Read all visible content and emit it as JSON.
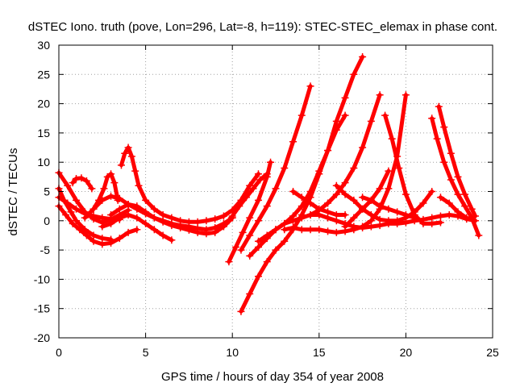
{
  "chart_data": {
    "type": "scatter",
    "title": "dSTEC Iono. truth (pove, Lon=296, Lat=-8, h=119): STEC-STEC_elemax in phase cont.",
    "xlabel": "GPS time / hours of day 354 of year 2008",
    "ylabel": "dSTEC  / TECUs",
    "xlim": [
      0,
      25
    ],
    "ylim": [
      -20,
      30
    ],
    "xticks": [
      0,
      5,
      10,
      15,
      20,
      25
    ],
    "yticks": [
      -20,
      -15,
      -10,
      -5,
      0,
      5,
      10,
      15,
      20,
      25,
      30
    ],
    "grid": true,
    "marker": "plus",
    "color": "#ff0000",
    "series": [
      {
        "x": [
          0.0,
          0.5,
          1.0,
          1.5,
          2.0,
          2.5,
          3.0,
          3.5,
          4.0
        ],
        "y": [
          8.2,
          6.0,
          3.5,
          1.5,
          0.3,
          -0.3,
          0.2,
          1.0,
          1.8
        ]
      },
      {
        "x": [
          0.0,
          0.3,
          0.7,
          1.0,
          1.5,
          2.0,
          2.5,
          3.0
        ],
        "y": [
          5.5,
          3.5,
          1.5,
          0.0,
          -1.5,
          -2.5,
          -3.0,
          -3.2
        ]
      },
      {
        "x": [
          0.0,
          0.4,
          0.8,
          1.2,
          1.6,
          2.0,
          2.5,
          3.0,
          3.5,
          4.0,
          4.5
        ],
        "y": [
          2.5,
          1.0,
          -0.5,
          -1.5,
          -2.5,
          -3.5,
          -4.0,
          -3.8,
          -3.0,
          -2.0,
          -1.5
        ]
      },
      {
        "x": [
          0.0,
          0.5,
          1.0,
          1.5,
          2.0,
          2.5,
          3.0,
          3.5
        ],
        "y": [
          4.0,
          3.0,
          2.0,
          1.2,
          0.8,
          0.5,
          0.3,
          0.2
        ]
      },
      {
        "x": [
          0.8,
          1.0,
          1.3,
          1.6,
          1.9
        ],
        "y": [
          6.5,
          7.2,
          7.3,
          6.8,
          5.5
        ]
      },
      {
        "x": [
          2.0,
          2.3,
          2.6,
          2.8,
          3.0,
          3.2,
          3.4
        ],
        "y": [
          2.0,
          3.5,
          5.5,
          7.5,
          8.0,
          6.5,
          3.5
        ]
      },
      {
        "x": [
          1.5,
          2.0,
          2.5,
          3.0,
          3.5,
          4.0,
          4.5,
          5.0,
          5.5,
          6.0,
          6.5,
          7.0,
          7.5,
          8.0,
          8.5,
          9.0,
          9.5,
          10.0
        ],
        "y": [
          0.5,
          2.0,
          3.5,
          4.2,
          3.8,
          2.8,
          2.0,
          1.2,
          0.5,
          0.0,
          -0.5,
          -0.8,
          -1.0,
          -1.3,
          -1.5,
          -1.2,
          -0.5,
          0.5
        ]
      },
      {
        "x": [
          3.6,
          3.8,
          4.0,
          4.2,
          4.4,
          4.6,
          5.0,
          5.5,
          6.0,
          6.5,
          7.0,
          7.5,
          8.0,
          8.5,
          9.0,
          9.5,
          10.0,
          10.5,
          11.0,
          11.5
        ],
        "y": [
          9.5,
          11.5,
          12.5,
          11.0,
          8.5,
          6.0,
          3.5,
          2.0,
          1.0,
          0.5,
          0.0,
          -0.2,
          -0.2,
          0.0,
          0.3,
          0.8,
          1.8,
          3.5,
          6.0,
          8.0
        ]
      },
      {
        "x": [
          2.5,
          3.0,
          3.5,
          4.0,
          4.5,
          5.0,
          5.5,
          6.0,
          6.5
        ],
        "y": [
          -1.0,
          -0.5,
          0.5,
          1.0,
          0.5,
          -0.5,
          -1.5,
          -2.5,
          -3.3
        ]
      },
      {
        "x": [
          3.0,
          3.5,
          4.0,
          4.5,
          5.0,
          5.5,
          6.0,
          6.5,
          7.0,
          7.5,
          8.0,
          8.5,
          9.0,
          9.5,
          10.0
        ],
        "y": [
          1.0,
          2.0,
          2.8,
          2.5,
          1.5,
          0.5,
          -0.2,
          -0.8,
          -1.2,
          -1.6,
          -2.0,
          -2.2,
          -2.0,
          -1.0,
          0.5
        ]
      },
      {
        "x": [
          9.8,
          10.2,
          10.6,
          11.0,
          11.5,
          12.0,
          12.2
        ],
        "y": [
          -7.0,
          -4.5,
          -2.0,
          0.5,
          3.5,
          7.5,
          10.0
        ]
      },
      {
        "x": [
          9.8,
          10.0,
          10.4,
          10.8,
          11.2,
          11.6,
          12.0
        ],
        "y": [
          0.0,
          0.8,
          2.5,
          4.0,
          5.5,
          7.0,
          8.0
        ]
      },
      {
        "x": [
          10.5,
          11.0,
          11.5,
          12.0,
          12.5,
          13.0,
          13.5,
          14.0,
          14.5
        ],
        "y": [
          -5.0,
          -2.5,
          0.0,
          2.5,
          5.5,
          9.0,
          13.5,
          18.0,
          23.0
        ]
      },
      {
        "x": [
          10.5,
          11.0,
          11.5,
          12.0,
          12.5,
          13.0,
          13.5,
          14.0,
          14.5,
          15.0,
          15.5,
          16.0,
          16.5,
          17.0,
          17.5
        ],
        "y": [
          -15.5,
          -12.5,
          -9.5,
          -7.0,
          -5.0,
          -3.5,
          -1.5,
          1.0,
          4.0,
          8.0,
          12.0,
          17.0,
          21.0,
          25.0,
          28.0
        ]
      },
      {
        "x": [
          11.0,
          11.5,
          12.0,
          12.5,
          13.0,
          13.5,
          14.0,
          14.5,
          15.0,
          15.5,
          16.0,
          16.5
        ],
        "y": [
          -6.0,
          -4.5,
          -3.0,
          -1.5,
          -0.5,
          0.8,
          2.5,
          5.0,
          8.5,
          12.0,
          15.5,
          18.0
        ]
      },
      {
        "x": [
          11.5,
          12.0,
          12.5,
          13.0,
          13.5,
          14.0,
          14.5,
          15.0,
          15.5,
          16.0,
          16.5,
          17.0,
          17.5,
          18.0,
          18.5
        ],
        "y": [
          -3.5,
          -2.5,
          -1.5,
          -0.5,
          0.0,
          0.5,
          1.0,
          1.8,
          3.0,
          4.5,
          6.5,
          9.0,
          12.5,
          17.0,
          21.5
        ]
      },
      {
        "x": [
          13.0,
          13.5,
          14.0,
          14.5,
          15.0,
          15.5,
          16.0,
          16.5,
          17.0,
          17.5,
          18.0,
          18.5,
          19.0,
          19.5,
          20.0
        ],
        "y": [
          -1.5,
          -1.2,
          -1.5,
          -1.5,
          -1.5,
          -1.8,
          -2.0,
          -1.8,
          -1.5,
          -1.0,
          0.0,
          2.0,
          5.5,
          11.0,
          21.5
        ]
      },
      {
        "x": [
          14.5,
          15.0,
          15.5,
          16.0,
          16.5,
          17.0,
          17.5,
          18.0,
          18.5,
          19.0,
          19.5,
          20.0,
          20.5,
          21.0,
          21.5,
          22.0,
          22.5,
          23.0,
          23.5,
          24.0
        ],
        "y": [
          1.0,
          1.0,
          0.5,
          0.0,
          -0.5,
          -1.0,
          -1.2,
          -1.0,
          -0.8,
          -0.5,
          -0.5,
          -0.3,
          0.0,
          0.2,
          0.5,
          0.8,
          1.0,
          0.8,
          0.3,
          0.0
        ]
      },
      {
        "x": [
          13.5,
          14.0,
          14.5,
          15.0,
          15.5,
          16.0,
          16.5
        ],
        "y": [
          5.0,
          4.0,
          3.0,
          2.0,
          1.5,
          1.0,
          1.0
        ]
      },
      {
        "x": [
          16.0,
          16.5,
          17.0,
          17.5,
          18.0,
          18.5,
          19.0,
          19.5,
          20.0,
          20.5,
          21.0,
          21.5
        ],
        "y": [
          6.0,
          4.5,
          3.5,
          2.0,
          1.0,
          0.2,
          0.0,
          0.0,
          0.5,
          1.5,
          3.0,
          5.0
        ]
      },
      {
        "x": [
          16.5,
          17.0,
          17.5,
          18.0,
          18.5,
          19.0
        ],
        "y": [
          -1.0,
          0.5,
          2.0,
          3.5,
          5.5,
          8.5
        ]
      },
      {
        "x": [
          17.5,
          18.0,
          18.5,
          19.0,
          19.5,
          20.0,
          20.5
        ],
        "y": [
          4.0,
          3.5,
          2.5,
          2.0,
          1.5,
          1.0,
          0.5
        ]
      },
      {
        "x": [
          18.8,
          19.2,
          19.6,
          20.0,
          20.5,
          21.0,
          21.5,
          22.0
        ],
        "y": [
          18.0,
          14.0,
          9.0,
          4.5,
          1.0,
          -0.5,
          -0.5,
          -0.3
        ]
      },
      {
        "x": [
          21.5,
          21.8,
          22.2,
          22.6,
          23.0,
          23.4,
          23.8,
          24.2
        ],
        "y": [
          17.5,
          14.0,
          10.0,
          7.0,
          4.5,
          2.5,
          0.5,
          -2.5
        ]
      },
      {
        "x": [
          21.9,
          22.2,
          22.6,
          23.0,
          23.4,
          23.8,
          24.0
        ],
        "y": [
          19.5,
          16.0,
          11.5,
          7.5,
          4.5,
          2.0,
          0.8
        ]
      },
      {
        "x": [
          22.0,
          22.5,
          23.0,
          23.5,
          24.0
        ],
        "y": [
          4.0,
          3.0,
          1.5,
          0.5,
          0.0
        ]
      }
    ]
  }
}
